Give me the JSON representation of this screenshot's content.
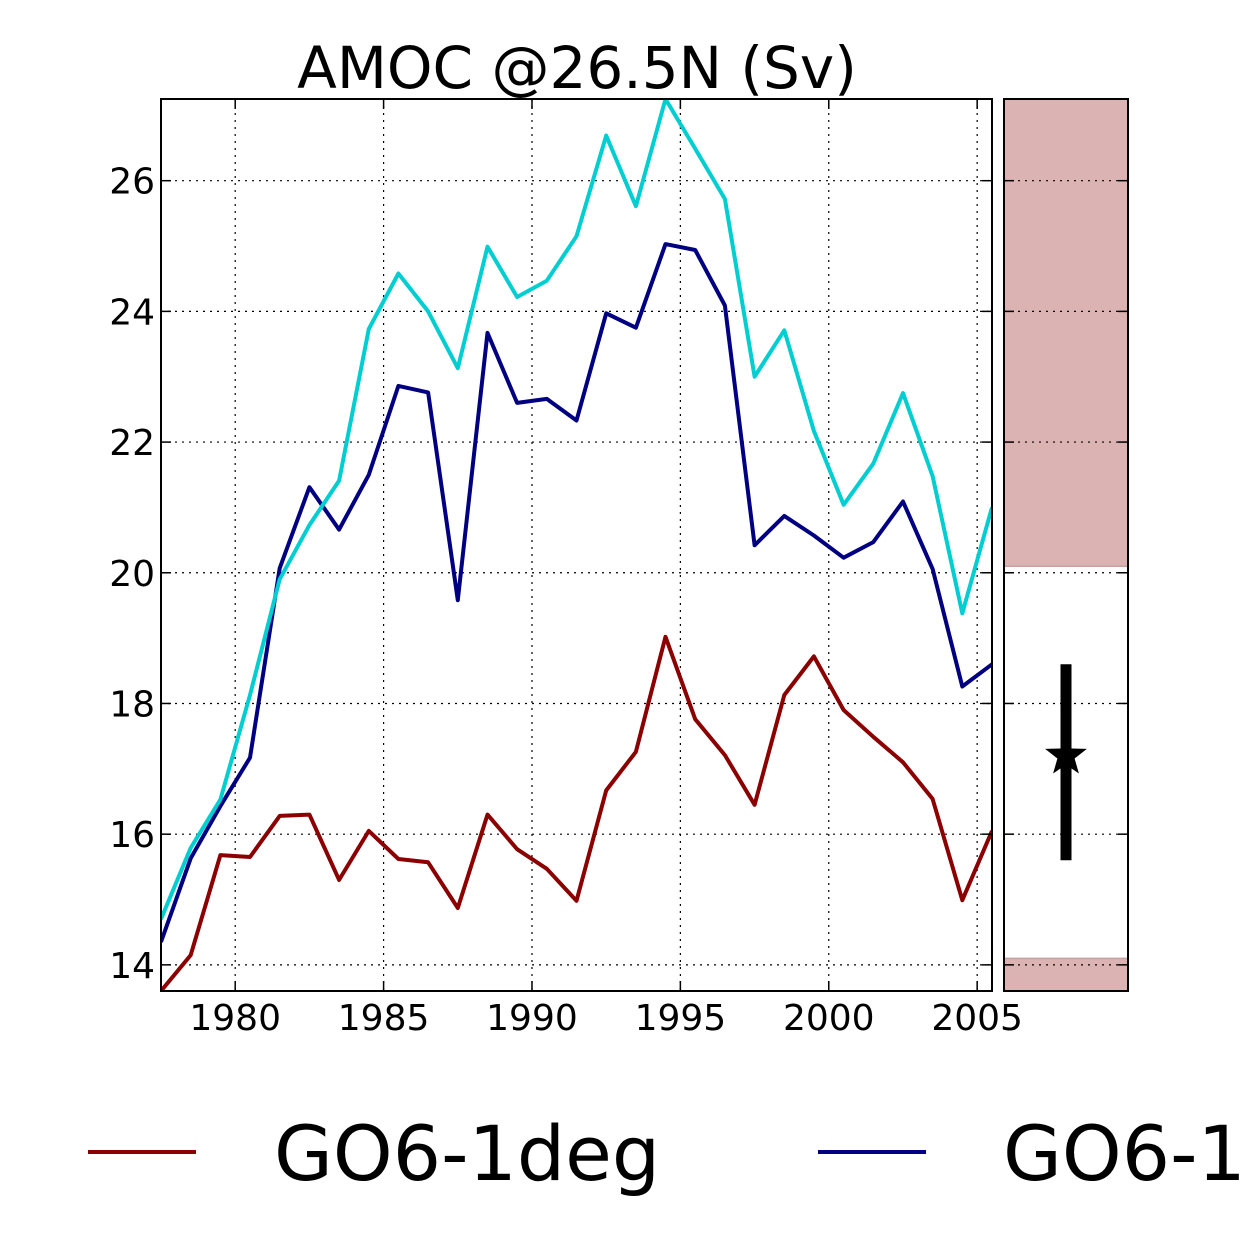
{
  "chart_data": {
    "type": "line",
    "title": "AMOC @26.5N (Sv)",
    "xlabel": "",
    "ylabel": "",
    "xlim": [
      1977.5,
      2005.5
    ],
    "ylim": [
      13.6,
      27.25
    ],
    "grid": true,
    "x_ticks": [
      1980,
      1985,
      1990,
      1995,
      2000,
      2005
    ],
    "y_ticks": [
      14,
      16,
      18,
      20,
      22,
      24,
      26
    ],
    "x": [
      1977.5,
      1978.5,
      1979.5,
      1980.5,
      1981.5,
      1982.5,
      1983.5,
      1984.5,
      1985.5,
      1986.5,
      1987.5,
      1988.5,
      1989.5,
      1990.5,
      1991.5,
      1992.5,
      1993.5,
      1994.5,
      1995.5,
      1996.5,
      1997.5,
      1998.5,
      1999.5,
      2000.5,
      2001.5,
      2002.5,
      2003.5,
      2004.5,
      2005.5
    ],
    "series": [
      {
        "name": "GO6-1deg",
        "color": "#8b0000",
        "values": [
          13.6,
          14.15,
          15.68,
          15.65,
          16.28,
          16.3,
          15.3,
          16.05,
          15.62,
          15.57,
          14.87,
          16.3,
          15.77,
          15.47,
          14.98,
          16.67,
          17.26,
          19.02,
          17.76,
          17.21,
          16.45,
          18.13,
          18.72,
          17.9,
          17.49,
          17.1,
          16.54,
          14.99,
          16.05
        ]
      },
      {
        "name": "GO6-1",
        "color": "#000080",
        "values": [
          14.35,
          15.63,
          16.43,
          17.17,
          20.07,
          21.31,
          20.66,
          21.5,
          22.86,
          22.76,
          19.58,
          23.67,
          22.6,
          22.66,
          22.33,
          23.97,
          23.75,
          25.03,
          24.94,
          24.09,
          20.42,
          20.87,
          20.57,
          20.23,
          20.47,
          21.09,
          20.06,
          18.26,
          18.6
        ]
      },
      {
        "name": "",
        "color": "#00ced1",
        "values": [
          14.7,
          15.79,
          16.53,
          18.13,
          19.9,
          20.73,
          21.41,
          23.73,
          24.58,
          24.0,
          23.13,
          24.99,
          24.22,
          24.47,
          25.15,
          26.69,
          25.61,
          27.25,
          26.49,
          25.72,
          23.0,
          23.71,
          22.17,
          21.04,
          21.67,
          22.75,
          21.48,
          19.38,
          21.0
        ]
      }
    ],
    "side_panel": {
      "ylim": [
        13.6,
        27.25
      ],
      "shaded_color": "#dbb3b3",
      "shaded_ranges": [
        [
          20.1,
          27.25
        ],
        [
          13.6,
          14.1
        ]
      ],
      "observation": {
        "value": 17.2,
        "error_low": 15.6,
        "error_high": 18.6,
        "marker": "star",
        "color": "#000000"
      }
    },
    "legend": {
      "placement": "bottom",
      "entries": [
        {
          "label": "GO6-1deg",
          "color": "#8b0000"
        },
        {
          "label": "GO6-1",
          "color": "#000080"
        }
      ]
    }
  }
}
